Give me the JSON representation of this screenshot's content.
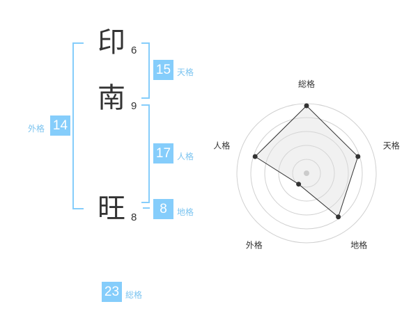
{
  "name": {
    "chars": [
      {
        "char": "印",
        "strokes": "6"
      },
      {
        "char": "南",
        "strokes": "9"
      },
      {
        "char": "旺",
        "strokes": "8"
      }
    ]
  },
  "fortunes": {
    "tenkaku": {
      "label": "天格",
      "value": "15"
    },
    "jinkaku": {
      "label": "人格",
      "value": "17"
    },
    "chikaku": {
      "label": "地格",
      "value": "8"
    },
    "gaikaku": {
      "label": "外格",
      "value": "14"
    },
    "soukaku": {
      "label": "総格",
      "value": "23"
    }
  },
  "colors": {
    "accent": "#85cdfb",
    "label": "#7cc4f0"
  },
  "chart_data": {
    "type": "radar",
    "axes": [
      "総格",
      "天格",
      "地格",
      "外格",
      "人格"
    ],
    "values": [
      5,
      4,
      4,
      1,
      4
    ],
    "range": [
      0,
      5
    ],
    "rings": 5
  }
}
